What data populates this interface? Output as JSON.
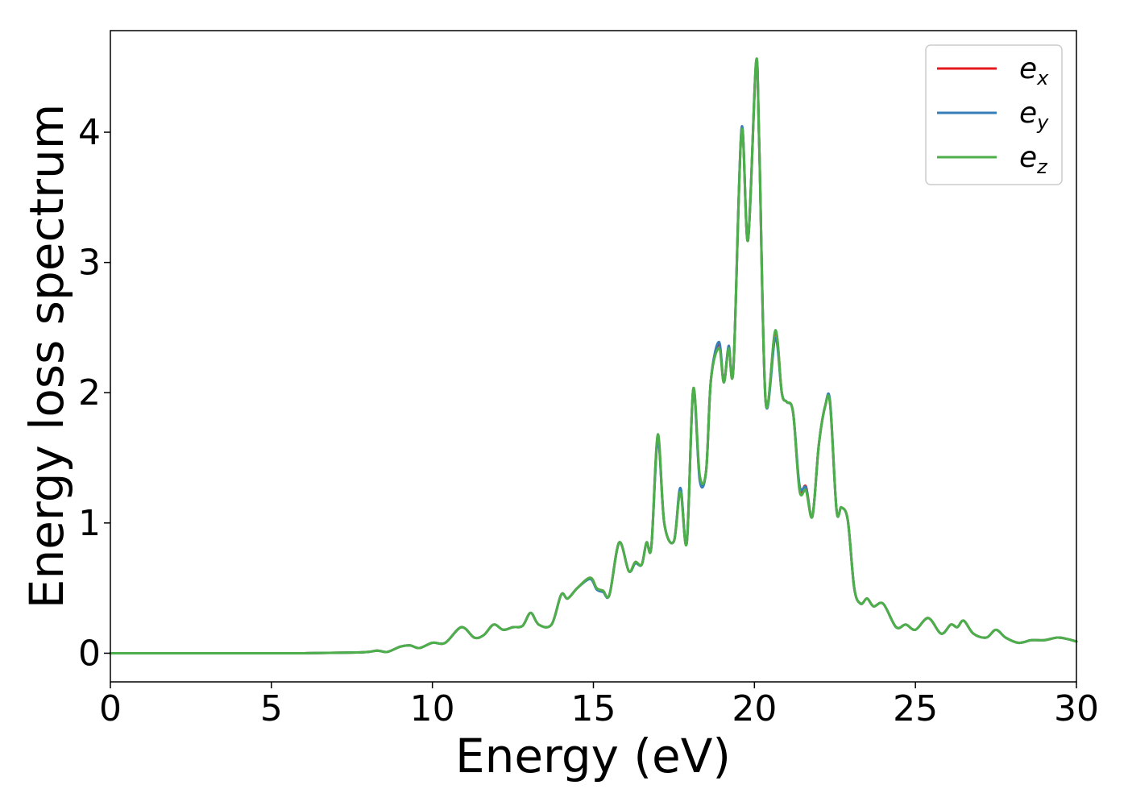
{
  "chart_data": {
    "type": "line",
    "title": "",
    "xlabel": "Energy (eV)",
    "ylabel": "Energy loss spectrum",
    "xlim": [
      0,
      30
    ],
    "ylim": [
      -0.22,
      4.78
    ],
    "xticks": [
      0,
      5,
      10,
      15,
      20,
      25,
      30
    ],
    "yticks": [
      0,
      1,
      2,
      3,
      4
    ],
    "grid": false,
    "legend_position": "top-right",
    "series": [
      {
        "name_base": "e",
        "name_sub": "x",
        "color": "#e41a1c",
        "x": [
          0,
          2,
          4,
          6,
          7.5,
          8,
          8.3,
          8.6,
          9,
          9.3,
          9.6,
          10,
          10.4,
          10.9,
          11.3,
          11.6,
          11.9,
          12.2,
          12.5,
          12.8,
          13.05,
          13.3,
          13.7,
          14,
          14.2,
          14.5,
          14.9,
          15.1,
          15.3,
          15.5,
          15.8,
          16.1,
          16.3,
          16.5,
          16.65,
          16.8,
          17,
          17.2,
          17.5,
          17.7,
          17.9,
          18.1,
          18.3,
          18.5,
          18.65,
          18.9,
          19.05,
          19.2,
          19.35,
          19.6,
          19.8,
          20.05,
          20.15,
          20.35,
          20.65,
          20.85,
          21,
          21.2,
          21.4,
          21.6,
          21.8,
          22,
          22.2,
          22.35,
          22.55,
          22.7,
          22.9,
          23.1,
          23.3,
          23.5,
          23.7,
          24,
          24.4,
          24.7,
          25,
          25.4,
          25.8,
          26.1,
          26.3,
          26.5,
          26.8,
          27.2,
          27.5,
          27.8,
          28.2,
          28.6,
          29,
          29.4,
          29.7,
          30
        ],
        "y": [
          0,
          0,
          0,
          0,
          0.005,
          0.01,
          0.02,
          0.01,
          0.05,
          0.06,
          0.04,
          0.08,
          0.08,
          0.2,
          0.12,
          0.14,
          0.22,
          0.18,
          0.2,
          0.21,
          0.31,
          0.22,
          0.22,
          0.45,
          0.42,
          0.5,
          0.58,
          0.5,
          0.48,
          0.45,
          0.85,
          0.63,
          0.7,
          0.68,
          0.85,
          0.82,
          1.66,
          1,
          0.86,
          1.26,
          0.85,
          2.02,
          1.35,
          1.4,
          2.1,
          2.37,
          2.08,
          2.35,
          2.2,
          4.02,
          3.17,
          4.52,
          3.9,
          1.93,
          2.47,
          2,
          1.93,
          1.85,
          1.27,
          1.28,
          1.05,
          1.6,
          1.9,
          1.92,
          1.1,
          1.12,
          1.02,
          0.5,
          0.38,
          0.42,
          0.36,
          0.38,
          0.2,
          0.22,
          0.18,
          0.27,
          0.15,
          0.22,
          0.2,
          0.25,
          0.15,
          0.12,
          0.18,
          0.12,
          0.08,
          0.1,
          0.1,
          0.12,
          0.11,
          0.09
        ]
      },
      {
        "name_base": "e",
        "name_sub": "y",
        "color": "#377eb8",
        "x": [
          0,
          2,
          4,
          6,
          7.5,
          8,
          8.3,
          8.6,
          9,
          9.3,
          9.6,
          10,
          10.4,
          10.9,
          11.3,
          11.6,
          11.9,
          12.2,
          12.5,
          12.8,
          13.05,
          13.3,
          13.7,
          14,
          14.2,
          14.5,
          14.9,
          15.1,
          15.3,
          15.5,
          15.8,
          16.1,
          16.3,
          16.5,
          16.65,
          16.8,
          17,
          17.2,
          17.5,
          17.7,
          17.9,
          18.1,
          18.3,
          18.5,
          18.65,
          18.9,
          19.05,
          19.2,
          19.35,
          19.6,
          19.8,
          20.05,
          20.15,
          20.35,
          20.65,
          20.85,
          21,
          21.2,
          21.4,
          21.6,
          21.8,
          22,
          22.2,
          22.35,
          22.55,
          22.7,
          22.9,
          23.1,
          23.3,
          23.5,
          23.7,
          24,
          24.4,
          24.7,
          25,
          25.4,
          25.8,
          26.1,
          26.3,
          26.5,
          26.8,
          27.2,
          27.5,
          27.8,
          28.2,
          28.6,
          29,
          29.4,
          29.7,
          30
        ],
        "y": [
          0,
          0,
          0,
          0,
          0.005,
          0.01,
          0.02,
          0.01,
          0.05,
          0.06,
          0.04,
          0.08,
          0.08,
          0.2,
          0.12,
          0.14,
          0.22,
          0.18,
          0.2,
          0.21,
          0.31,
          0.22,
          0.22,
          0.45,
          0.42,
          0.5,
          0.57,
          0.49,
          0.47,
          0.45,
          0.85,
          0.63,
          0.69,
          0.68,
          0.85,
          0.82,
          1.64,
          1,
          0.86,
          1.27,
          0.85,
          2.02,
          1.33,
          1.4,
          2.1,
          2.39,
          2.08,
          2.36,
          2.2,
          4.03,
          3.17,
          4.53,
          3.9,
          1.93,
          2.42,
          2,
          1.93,
          1.85,
          1.29,
          1.27,
          1.05,
          1.6,
          1.9,
          1.93,
          1.1,
          1.12,
          1.02,
          0.5,
          0.38,
          0.42,
          0.36,
          0.38,
          0.2,
          0.22,
          0.18,
          0.27,
          0.15,
          0.22,
          0.2,
          0.25,
          0.15,
          0.12,
          0.18,
          0.12,
          0.08,
          0.1,
          0.1,
          0.12,
          0.11,
          0.09
        ]
      },
      {
        "name_base": "e",
        "name_sub": "z",
        "color": "#4daf4a",
        "x": [
          0,
          2,
          4,
          6,
          7.5,
          8,
          8.3,
          8.6,
          9,
          9.3,
          9.6,
          10,
          10.4,
          10.9,
          11.3,
          11.6,
          11.9,
          12.2,
          12.5,
          12.8,
          13.05,
          13.3,
          13.7,
          14,
          14.2,
          14.5,
          14.9,
          15.1,
          15.3,
          15.5,
          15.8,
          16.1,
          16.3,
          16.5,
          16.65,
          16.8,
          17,
          17.2,
          17.5,
          17.7,
          17.9,
          18.1,
          18.3,
          18.5,
          18.65,
          18.9,
          19.05,
          19.2,
          19.35,
          19.6,
          19.8,
          20.05,
          20.15,
          20.35,
          20.65,
          20.85,
          21,
          21.2,
          21.4,
          21.6,
          21.8,
          22,
          22.2,
          22.35,
          22.55,
          22.7,
          22.9,
          23.1,
          23.3,
          23.5,
          23.7,
          24,
          24.4,
          24.7,
          25,
          25.4,
          25.8,
          26.1,
          26.3,
          26.5,
          26.8,
          27.2,
          27.5,
          27.8,
          28.2,
          28.6,
          29,
          29.4,
          29.7,
          30
        ],
        "y": [
          0,
          0,
          0,
          0,
          0.005,
          0.01,
          0.02,
          0.01,
          0.05,
          0.06,
          0.04,
          0.08,
          0.08,
          0.2,
          0.12,
          0.14,
          0.22,
          0.18,
          0.2,
          0.21,
          0.31,
          0.22,
          0.22,
          0.45,
          0.42,
          0.5,
          0.58,
          0.5,
          0.48,
          0.45,
          0.85,
          0.63,
          0.7,
          0.68,
          0.85,
          0.82,
          1.68,
          1,
          0.86,
          1.24,
          0.85,
          2.03,
          1.37,
          1.4,
          2.1,
          2.34,
          2.08,
          2.34,
          2.2,
          4.01,
          3.17,
          4.54,
          3.9,
          1.93,
          2.48,
          2,
          1.93,
          1.85,
          1.25,
          1.25,
          1.05,
          1.6,
          1.9,
          1.91,
          1.1,
          1.12,
          1.02,
          0.5,
          0.38,
          0.42,
          0.36,
          0.38,
          0.2,
          0.22,
          0.18,
          0.27,
          0.15,
          0.22,
          0.2,
          0.25,
          0.15,
          0.12,
          0.18,
          0.12,
          0.08,
          0.1,
          0.1,
          0.12,
          0.11,
          0.09
        ]
      }
    ]
  }
}
